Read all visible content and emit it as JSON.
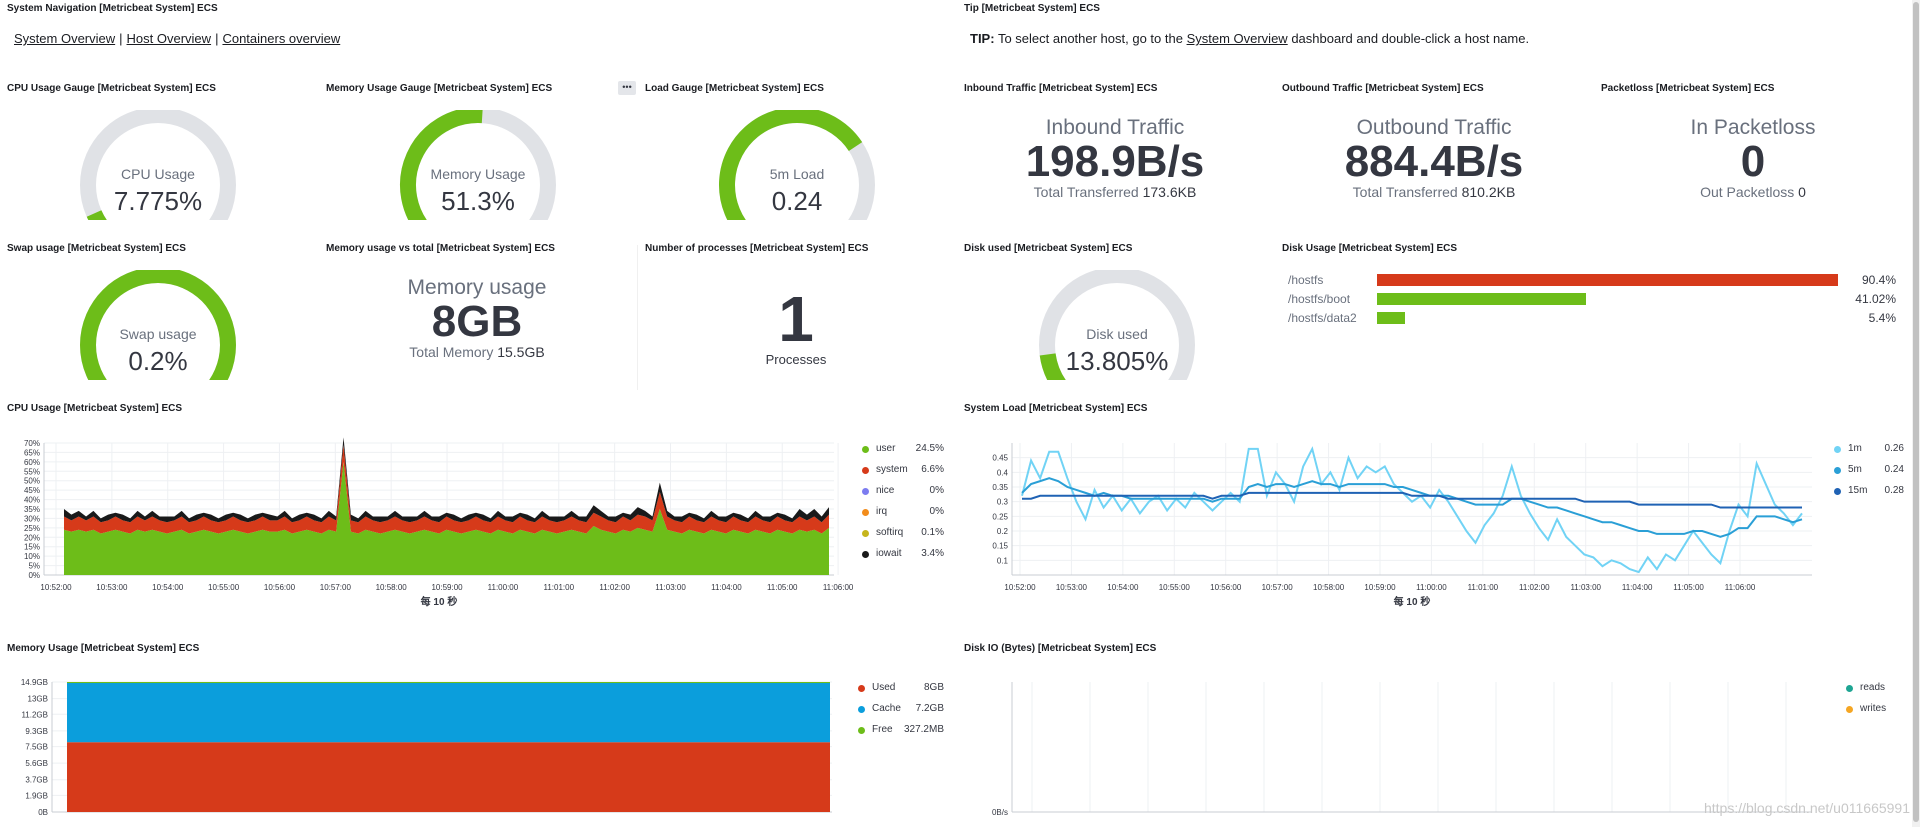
{
  "titles": {
    "nav": "System Navigation [Metricbeat System] ECS",
    "tip": "Tip [Metricbeat System] ECS",
    "cpu_gauge": "CPU Usage Gauge [Metricbeat System] ECS",
    "mem_gauge": "Memory Usage Gauge [Metricbeat System] ECS",
    "load_gauge": "Load Gauge [Metricbeat System] ECS",
    "inbound": "Inbound Traffic [Metricbeat System] ECS",
    "outbound": "Outbound Traffic [Metricbeat System] ECS",
    "packetloss": "Packetloss [Metricbeat System] ECS",
    "swap": "Swap usage [Metricbeat System] ECS",
    "mem_vs_total": "Memory usage vs total [Metricbeat System] ECS",
    "processes": "Number of processes [Metricbeat System] ECS",
    "disk_used": "Disk used [Metricbeat System] ECS",
    "disk_usage": "Disk Usage [Metricbeat System] ECS",
    "cpu_usage": "CPU Usage [Metricbeat System] ECS",
    "system_load": "System Load [Metricbeat System] ECS",
    "memory_usage": "Memory Usage [Metricbeat System] ECS",
    "disk_io": "Disk IO (Bytes) [Metricbeat System] ECS"
  },
  "nav": {
    "system_overview": "System Overview",
    "host_overview": "Host Overview",
    "containers_overview": "Containers overview"
  },
  "tip": {
    "label": "TIP:",
    "before": " To select another host, go to the ",
    "link": "System Overview",
    "after": " dashboard and double-click a host name."
  },
  "menu_icon": "more-icon",
  "gauges": {
    "cpu": {
      "label": "CPU Usage",
      "value": "7.775%",
      "fraction": 0.07775,
      "color": "#6dbd19"
    },
    "memory": {
      "label": "Memory Usage",
      "value": "51.3%",
      "fraction": 0.513,
      "color": "#6dbd19"
    },
    "load": {
      "label": "5m Load",
      "value": "0.24",
      "fraction": 0.71,
      "color": "#6dbd19"
    },
    "swap": {
      "label": "Swap usage",
      "value": "0.2%",
      "fraction": 1.0,
      "color": "#6dbd19"
    },
    "disk": {
      "label": "Disk used",
      "value": "13.805%",
      "fraction": 0.13805,
      "color": "#6dbd19"
    }
  },
  "inbound": {
    "label": "Inbound Traffic",
    "value": "198.9B/s",
    "sub_label": "Total Transferred",
    "sub_value": "173.6KB"
  },
  "outbound": {
    "label": "Outbound Traffic",
    "value": "884.4B/s",
    "sub_label": "Total Transferred",
    "sub_value": "810.2KB"
  },
  "packetloss": {
    "label": "In Packetloss",
    "value": "0",
    "sub_label": "Out Packetloss",
    "sub_value": "0"
  },
  "mem_vs_total": {
    "label": "Memory usage",
    "value": "8GB",
    "sub_label": "Total Memory",
    "sub_value": "15.5GB"
  },
  "processes": {
    "value": "1",
    "label": "Processes"
  },
  "disk_usage": {
    "rows": [
      {
        "name": "/hostfs",
        "value": "90.4%",
        "fraction": 0.904,
        "color": "#d63a1a"
      },
      {
        "name": "/hostfs/boot",
        "value": "41.02%",
        "fraction": 0.4102,
        "color": "#6dbd19"
      },
      {
        "name": "/hostfs/data2",
        "value": "5.4%",
        "fraction": 0.054,
        "color": "#6dbd19"
      }
    ]
  },
  "cpu_legend": [
    {
      "name": "user",
      "value": "24.5%",
      "color": "#6dbd19"
    },
    {
      "name": "system",
      "value": "6.6%",
      "color": "#d63a1a"
    },
    {
      "name": "nice",
      "value": "0%",
      "color": "#7c7cf0"
    },
    {
      "name": "irq",
      "value": "0%",
      "color": "#f28c1b"
    },
    {
      "name": "softirq",
      "value": "0.1%",
      "color": "#c6b51d"
    },
    {
      "name": "iowait",
      "value": "3.4%",
      "color": "#1a1a1a"
    }
  ],
  "load_legend": [
    {
      "name": "1m",
      "value": "0.26",
      "color": "#71d3f5"
    },
    {
      "name": "5m",
      "value": "0.24",
      "color": "#2a9fd6"
    },
    {
      "name": "15m",
      "value": "0.28",
      "color": "#1f62b4"
    }
  ],
  "mem_legend": [
    {
      "name": "Used",
      "value": "8GB",
      "color": "#d63a1a"
    },
    {
      "name": "Cache",
      "value": "7.2GB",
      "color": "#0b9edc"
    },
    {
      "name": "Free",
      "value": "327.2MB",
      "color": "#6dbd19"
    }
  ],
  "disk_io_legend": [
    {
      "name": "reads",
      "value": "",
      "color": "#1ea593"
    },
    {
      "name": "writes",
      "value": "",
      "color": "#f5a623"
    }
  ],
  "watermark": "https://blog.csdn.net/u011665991",
  "chart_data": [
    {
      "id": "cpu",
      "type": "area",
      "xlabel": "每 10 秒",
      "x_ticks": [
        "10:52:00",
        "10:53:00",
        "10:54:00",
        "10:55:00",
        "10:56:00",
        "10:57:00",
        "10:58:00",
        "10:59:00",
        "11:00:00",
        "11:01:00",
        "11:02:00",
        "11:03:00",
        "11:04:00",
        "11:05:00",
        "11:06:00"
      ],
      "y_ticks": [
        "0%",
        "5%",
        "10%",
        "15%",
        "20%",
        "25%",
        "30%",
        "35%",
        "40%",
        "45%",
        "50%",
        "55%",
        "60%",
        "65%",
        "70%"
      ],
      "ylim": [
        0,
        70
      ],
      "series": [
        {
          "name": "user",
          "values": [
            24,
            23,
            24,
            23,
            24,
            22,
            23,
            24,
            23,
            22,
            24,
            23,
            24,
            23,
            22,
            23,
            24,
            22,
            23,
            24,
            23,
            22,
            23,
            24,
            23,
            22,
            23,
            24,
            23,
            23,
            24,
            22,
            23,
            24,
            23,
            22,
            24,
            23,
            60,
            23,
            22,
            24,
            23,
            22,
            23,
            24,
            23,
            22,
            23,
            24,
            23,
            22,
            24,
            23,
            22,
            23,
            24,
            23,
            22,
            24,
            23,
            22,
            24,
            23,
            22,
            24,
            23,
            22,
            23,
            24,
            23,
            22,
            26,
            24,
            23,
            22,
            24,
            23,
            25,
            24,
            23,
            35,
            24,
            23,
            22,
            24,
            23,
            22,
            24,
            23,
            22,
            24,
            23,
            22,
            24,
            23,
            22,
            24,
            23,
            22,
            24,
            23,
            24,
            22,
            25
          ]
        },
        {
          "name": "system",
          "values": [
            7,
            6,
            7,
            6,
            7,
            6,
            6,
            7,
            6,
            6,
            7,
            6,
            7,
            6,
            6,
            6,
            7,
            6,
            6,
            7,
            6,
            6,
            6,
            7,
            6,
            6,
            6,
            7,
            6,
            6,
            7,
            6,
            6,
            7,
            6,
            6,
            7,
            6,
            9,
            6,
            6,
            7,
            6,
            6,
            6,
            7,
            6,
            6,
            6,
            7,
            6,
            6,
            7,
            6,
            6,
            6,
            7,
            6,
            6,
            7,
            6,
            6,
            7,
            6,
            6,
            7,
            6,
            6,
            6,
            7,
            6,
            6,
            7,
            7,
            6,
            6,
            7,
            6,
            7,
            7,
            6,
            9,
            7,
            6,
            6,
            7,
            6,
            6,
            7,
            6,
            6,
            7,
            6,
            6,
            7,
            6,
            6,
            7,
            6,
            6,
            7,
            6,
            7,
            6,
            7
          ]
        },
        {
          "name": "iowait",
          "values": [
            4,
            3,
            3,
            2,
            3,
            2,
            3,
            2,
            3,
            2,
            3,
            2,
            3,
            2,
            3,
            2,
            3,
            2,
            3,
            2,
            3,
            2,
            3,
            2,
            3,
            2,
            3,
            2,
            3,
            2,
            3,
            2,
            3,
            2,
            3,
            2,
            3,
            2,
            4,
            3,
            2,
            3,
            2,
            3,
            2,
            3,
            2,
            3,
            2,
            3,
            2,
            3,
            2,
            3,
            2,
            3,
            2,
            3,
            2,
            3,
            2,
            3,
            2,
            3,
            2,
            3,
            2,
            3,
            2,
            3,
            2,
            3,
            4,
            3,
            2,
            3,
            2,
            3,
            4,
            3,
            2,
            5,
            3,
            2,
            3,
            2,
            3,
            2,
            3,
            2,
            3,
            2,
            3,
            2,
            3,
            2,
            3,
            2,
            3,
            2,
            4,
            3,
            4,
            3,
            4
          ]
        }
      ]
    },
    {
      "id": "load",
      "type": "line",
      "xlabel": "每 10 秒",
      "x_ticks": [
        "10:52:00",
        "10:53:00",
        "10:54:00",
        "10:55:00",
        "10:56:00",
        "10:57:00",
        "10:58:00",
        "10:59:00",
        "11:00:00",
        "11:01:00",
        "11:02:00",
        "11:03:00",
        "11:04:00",
        "11:05:00",
        "11:06:00"
      ],
      "y_ticks": [
        "0.1",
        "0.15",
        "0.2",
        "0.25",
        "0.3",
        "0.35",
        "0.4",
        "0.45"
      ],
      "ylim": [
        0.05,
        0.5
      ],
      "series": [
        {
          "name": "1m",
          "values": [
            0.32,
            0.44,
            0.38,
            0.47,
            0.47,
            0.38,
            0.3,
            0.24,
            0.34,
            0.28,
            0.32,
            0.27,
            0.31,
            0.26,
            0.3,
            0.32,
            0.27,
            0.31,
            0.28,
            0.33,
            0.3,
            0.27,
            0.3,
            0.33,
            0.3,
            0.48,
            0.48,
            0.32,
            0.4,
            0.36,
            0.3,
            0.42,
            0.48,
            0.36,
            0.4,
            0.34,
            0.45,
            0.38,
            0.42,
            0.4,
            0.42,
            0.36,
            0.33,
            0.3,
            0.32,
            0.28,
            0.34,
            0.3,
            0.25,
            0.2,
            0.16,
            0.22,
            0.26,
            0.32,
            0.42,
            0.32,
            0.26,
            0.21,
            0.17,
            0.24,
            0.18,
            0.15,
            0.12,
            0.11,
            0.08,
            0.1,
            0.09,
            0.07,
            0.06,
            0.11,
            0.07,
            0.12,
            0.1,
            0.15,
            0.2,
            0.16,
            0.12,
            0.09,
            0.2,
            0.29,
            0.25,
            0.43,
            0.36,
            0.29,
            0.26,
            0.22,
            0.26
          ]
        },
        {
          "name": "5m",
          "values": [
            0.33,
            0.36,
            0.37,
            0.38,
            0.37,
            0.35,
            0.34,
            0.33,
            0.32,
            0.33,
            0.32,
            0.32,
            0.31,
            0.31,
            0.31,
            0.31,
            0.31,
            0.31,
            0.31,
            0.31,
            0.31,
            0.3,
            0.31,
            0.31,
            0.31,
            0.35,
            0.36,
            0.35,
            0.36,
            0.36,
            0.35,
            0.36,
            0.37,
            0.36,
            0.36,
            0.35,
            0.36,
            0.36,
            0.36,
            0.36,
            0.36,
            0.35,
            0.35,
            0.34,
            0.33,
            0.32,
            0.32,
            0.32,
            0.31,
            0.3,
            0.29,
            0.29,
            0.29,
            0.29,
            0.31,
            0.31,
            0.3,
            0.29,
            0.28,
            0.28,
            0.27,
            0.26,
            0.25,
            0.24,
            0.23,
            0.23,
            0.22,
            0.21,
            0.2,
            0.2,
            0.19,
            0.19,
            0.19,
            0.19,
            0.2,
            0.2,
            0.19,
            0.18,
            0.19,
            0.21,
            0.21,
            0.25,
            0.25,
            0.25,
            0.24,
            0.23,
            0.24
          ]
        },
        {
          "name": "15m",
          "values": [
            0.31,
            0.31,
            0.32,
            0.32,
            0.32,
            0.32,
            0.32,
            0.32,
            0.32,
            0.32,
            0.32,
            0.32,
            0.32,
            0.32,
            0.32,
            0.32,
            0.32,
            0.32,
            0.32,
            0.32,
            0.32,
            0.31,
            0.32,
            0.32,
            0.32,
            0.33,
            0.33,
            0.33,
            0.33,
            0.33,
            0.33,
            0.33,
            0.33,
            0.33,
            0.33,
            0.33,
            0.33,
            0.33,
            0.33,
            0.33,
            0.33,
            0.33,
            0.33,
            0.32,
            0.32,
            0.32,
            0.32,
            0.31,
            0.31,
            0.31,
            0.31,
            0.31,
            0.31,
            0.31,
            0.31,
            0.31,
            0.31,
            0.31,
            0.31,
            0.31,
            0.31,
            0.31,
            0.3,
            0.3,
            0.3,
            0.3,
            0.3,
            0.3,
            0.29,
            0.29,
            0.29,
            0.29,
            0.29,
            0.29,
            0.29,
            0.29,
            0.29,
            0.28,
            0.28,
            0.28,
            0.28,
            0.28,
            0.28,
            0.28,
            0.28,
            0.28,
            0.28
          ]
        }
      ]
    },
    {
      "id": "memory",
      "type": "area",
      "y_ticks": [
        "0B",
        "1.9GB",
        "3.7GB",
        "5.6GB",
        "7.5GB",
        "9.3GB",
        "11.2GB",
        "13GB",
        "14.9GB"
      ],
      "ylim": [
        0,
        14.9
      ],
      "series": [
        {
          "name": "Used",
          "values": [
            8,
            8
          ]
        },
        {
          "name": "Cache",
          "values": [
            7.2,
            7.2
          ]
        },
        {
          "name": "Free",
          "values": [
            0.3,
            0.3
          ]
        }
      ]
    },
    {
      "id": "disk_io",
      "type": "line",
      "y_ticks": [
        "0B/s"
      ],
      "series": [
        {
          "name": "reads",
          "values": []
        },
        {
          "name": "writes",
          "values": []
        }
      ]
    }
  ]
}
